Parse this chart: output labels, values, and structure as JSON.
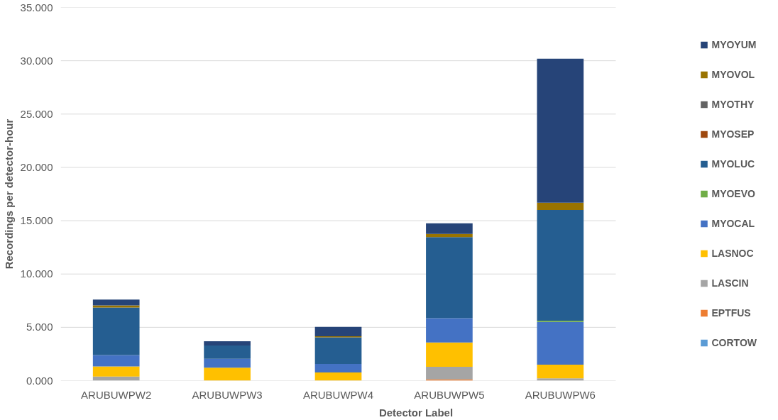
{
  "chart_data": {
    "type": "bar",
    "stacked": true,
    "xlabel": "Detector Label",
    "ylabel": "Recordings per detector-hour",
    "categories": [
      "ARUBUWPW2",
      "ARUBUWPW3",
      "ARUBUWPW4",
      "ARUBUWPW5",
      "ARUBUWPW6"
    ],
    "ylim": [
      0,
      35
    ],
    "yticks": [
      {
        "value": 0,
        "label": "0.000"
      },
      {
        "value": 5,
        "label": "5.000"
      },
      {
        "value": 10,
        "label": "10.000"
      },
      {
        "value": 15,
        "label": "15.000"
      },
      {
        "value": 20,
        "label": "20.000"
      },
      {
        "value": 25,
        "label": "25.000"
      },
      {
        "value": 30,
        "label": "30.000"
      },
      {
        "value": 35,
        "label": "35.000"
      }
    ],
    "grid": "y",
    "legend": "right",
    "series": [
      {
        "name": "CORTOW",
        "color": "#5b9bd5",
        "values": [
          0,
          0,
          0,
          0,
          0
        ]
      },
      {
        "name": "EPTFUS",
        "color": "#ed7d31",
        "values": [
          0,
          0,
          0,
          0.12,
          0
        ]
      },
      {
        "name": "LASCIN",
        "color": "#a5a5a5",
        "values": [
          0.38,
          0,
          0,
          1.18,
          0.21
        ]
      },
      {
        "name": "LASNOC",
        "color": "#ffc000",
        "values": [
          0.95,
          1.21,
          0.76,
          2.28,
          1.29
        ]
      },
      {
        "name": "MYOCAL",
        "color": "#4472c4",
        "values": [
          1.07,
          0.84,
          0.81,
          2.28,
          4.01
        ]
      },
      {
        "name": "MYOEVO",
        "color": "#70ad47",
        "values": [
          0,
          0,
          0,
          0,
          0.12
        ]
      },
      {
        "name": "MYOLUC",
        "color": "#255e91",
        "values": [
          4.46,
          1.25,
          2.49,
          7.59,
          10.38
        ]
      },
      {
        "name": "MYOSEP",
        "color": "#9e480e",
        "values": [
          0,
          0,
          0,
          0,
          0
        ]
      },
      {
        "name": "MYOTHY",
        "color": "#636363",
        "values": [
          0,
          0,
          0,
          0,
          0
        ]
      },
      {
        "name": "MYOVOL",
        "color": "#997300",
        "values": [
          0.19,
          0,
          0.1,
          0.31,
          0.67
        ]
      },
      {
        "name": "MYOYUM",
        "color": "#264478",
        "values": [
          0.55,
          0.39,
          0.88,
          0.99,
          13.52
        ]
      }
    ]
  }
}
